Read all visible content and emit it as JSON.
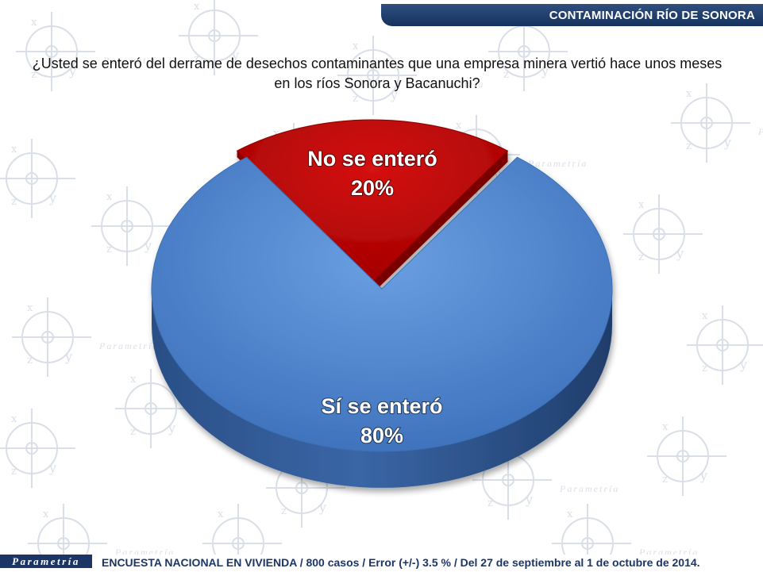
{
  "header": {
    "title": "CONTAMINACIÓN RÍO DE SONORA"
  },
  "question": "¿Usted se enteró del derrame de desechos contaminantes que una empresa minera vertió hace unos meses en los ríos Sonora y Bacanuchi?",
  "chart_data": {
    "type": "pie",
    "title": "",
    "slices": [
      {
        "label": "No se enteró",
        "value": 20,
        "value_label": "20%",
        "color": "#c00000",
        "exploded": true
      },
      {
        "label": "Sí se enteró",
        "value": 80,
        "value_label": "80%",
        "color": "#4f86d0",
        "exploded": false
      }
    ]
  },
  "footer": {
    "logo": "Parametría",
    "note": "ENCUESTA NACIONAL EN VIVIENDA / 800 casos / Error (+/-) 3.5 % / Del 27 de septiembre al 1 de octubre de 2014."
  },
  "background": {
    "watermark_word": "Parametría",
    "watermark_color": "#d5dbe6"
  }
}
